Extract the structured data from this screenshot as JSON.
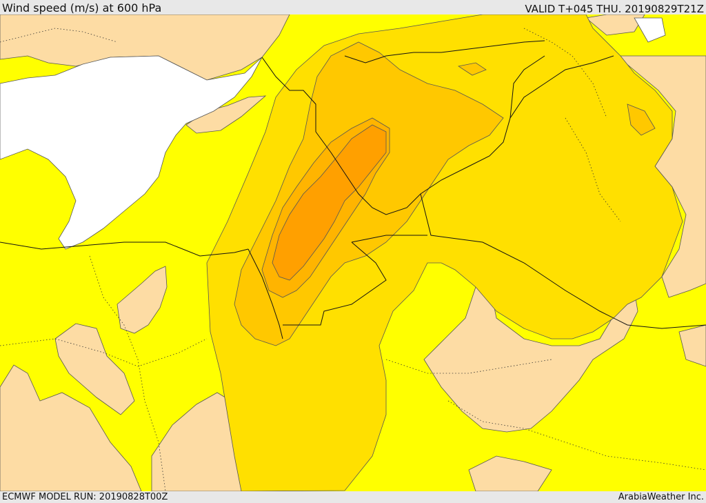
{
  "header": {
    "title": "Wind speed (m/s) at 600 hPa",
    "valid": "VALID T+045 THU. 20190829T21Z"
  },
  "footer": {
    "model_run": "ECMWF MODEL RUN: 20190828T00Z",
    "credit": "ArabiaWeather Inc."
  },
  "map": {
    "colors": {
      "sea": "#ffffff",
      "band_low": "#fddca4",
      "band_1": "#ffff00",
      "band_2": "#ffe000",
      "band_3": "#ffc800",
      "band_4": "#ffb400",
      "band_5": "#ffa000",
      "contour": "#555555",
      "border": "#000000"
    }
  }
}
